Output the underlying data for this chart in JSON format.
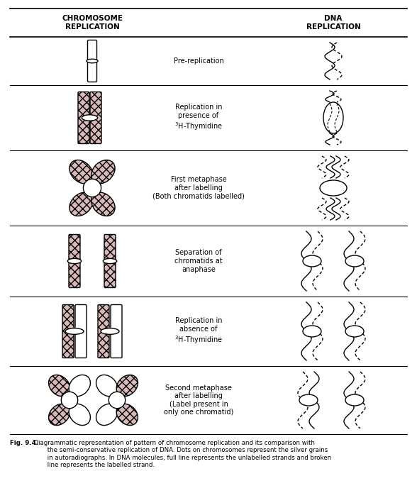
{
  "title": "CHROMOSOME\nREPLICATION",
  "title2": "DNA\nREPLICATION",
  "bg_color": "#ffffff",
  "row_labels": [
    "Pre-replication",
    "Replication in\npresence of\n$^3$H-Thymidine",
    "First metaphase\nafter labelling\n(Both chromatids labelled)",
    "Separation of\nchromatids at\nanaphase",
    "Replication in\nabsence of\n$^3$H-Thymidine",
    "Second metaphase\nafter labelling\n(Label present in\nonly one chromatid)"
  ],
  "caption_bold": "Fig. 9.4.",
  "caption_rest": "  Diagrammatic representation of pattern of chromosome replication and its comparison with\n         the semi-conservative replication of DNA. Dots on chromosomes represent the silver grains\n         in autoradiographs. In DNA molecules, full line represents the unlabelled strands and broken\n         line represents the labelled strand.",
  "fig_width": 5.88,
  "fig_height": 7.02,
  "hatch_fc": "#d8b8b8",
  "hatch_pattern": "xxxx"
}
